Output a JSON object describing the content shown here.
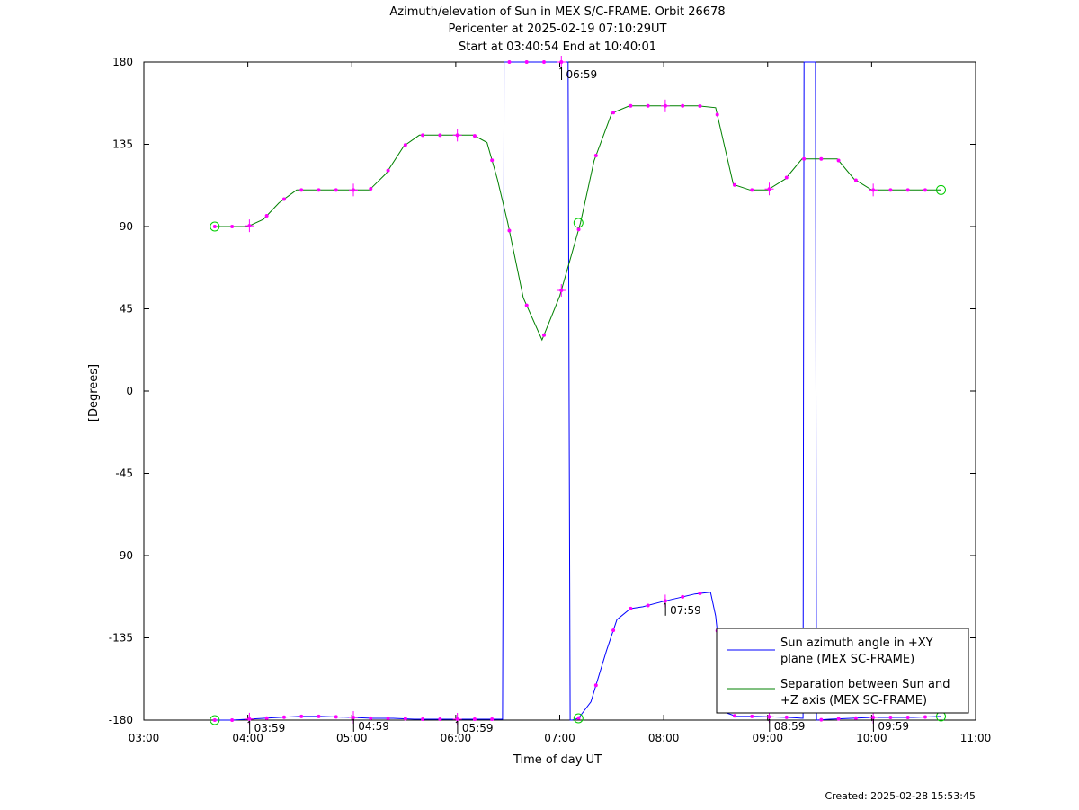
{
  "chart_data": {
    "type": "line",
    "title": [
      "Azimuth/elevation of Sun in MEX S/C-FRAME.  Orbit 26678",
      "Pericenter at 2025-02-19 07:10:29UT",
      "Start at 03:40:54 End at 10:40:01"
    ],
    "xlabel": "Time of day UT",
    "ylabel": "[Degrees]",
    "xlim": [
      3.0,
      11.0
    ],
    "ylim": [
      -180,
      180
    ],
    "x_ticks": [
      3,
      4,
      5,
      6,
      7,
      8,
      9,
      10,
      11
    ],
    "x_tick_labels": [
      "03:00",
      "04:00",
      "05:00",
      "06:00",
      "07:00",
      "08:00",
      "09:00",
      "10:00",
      "11:00"
    ],
    "y_ticks": [
      180,
      135,
      90,
      45,
      0,
      -45,
      -90,
      -135,
      -180
    ],
    "y_tick_labels": [
      "180",
      "135",
      "90",
      "45",
      "0",
      "-45",
      "-90",
      "-135",
      "-180"
    ],
    "grid": false,
    "legend_position": "bottom-right",
    "series": [
      {
        "name": "Sun azimuth angle in +XY plane (MEX SC-FRAME)",
        "color": "#0000ff",
        "x": [
          3.682,
          3.85,
          4.0,
          4.15,
          4.3,
          4.5,
          4.7,
          5.0,
          5.2,
          5.4,
          5.6,
          5.8,
          6.0,
          6.2,
          6.35,
          6.45,
          6.46,
          6.465,
          6.47,
          6.6,
          6.8,
          7.0,
          7.08,
          7.09,
          7.1,
          7.11,
          7.12,
          7.18,
          7.3,
          7.45,
          7.55,
          7.68,
          7.8,
          8.0,
          8.15,
          8.3,
          8.45,
          8.5,
          8.6,
          8.7,
          8.9,
          9.2,
          9.34,
          9.345,
          9.35,
          9.46,
          9.465,
          9.47,
          9.6,
          9.8,
          10.0,
          10.2,
          10.4,
          10.667
        ],
        "y": [
          -180,
          -180,
          -179.5,
          -179,
          -178.5,
          -178,
          -178,
          -178.5,
          -179,
          -179,
          -179.5,
          -179.5,
          -179.5,
          -179.5,
          -179.5,
          -179.5,
          0,
          180,
          180,
          180,
          180,
          180,
          180,
          0,
          -180,
          -180,
          -180,
          -179,
          -170,
          -142,
          -125,
          -119,
          -118,
          -115,
          -113,
          -111,
          -110,
          -123,
          -176,
          -178,
          -178,
          -178.5,
          -179,
          0,
          180,
          180,
          0,
          -180,
          -179.5,
          -179,
          -178.5,
          -178.5,
          -178.5,
          -178
        ]
      },
      {
        "name": "Separation between Sun and +Z axis (MEX SC-FRAME)",
        "color": "#008000",
        "x": [
          3.682,
          3.85,
          4.0,
          4.15,
          4.3,
          4.47,
          4.65,
          4.82,
          5.0,
          5.17,
          5.33,
          5.5,
          5.65,
          5.83,
          6.0,
          6.17,
          6.3,
          6.4,
          6.5,
          6.65,
          6.83,
          7.0,
          7.1,
          7.2,
          7.33,
          7.5,
          7.67,
          7.83,
          8.0,
          8.17,
          8.33,
          8.5,
          8.67,
          8.83,
          9.0,
          9.17,
          9.33,
          9.5,
          9.67,
          9.83,
          10.0,
          10.17,
          10.33,
          10.5,
          10.667
        ],
        "y": [
          90,
          90,
          90,
          94,
          103,
          110,
          110,
          110,
          110,
          110,
          119,
          134,
          140,
          140,
          140,
          140,
          136,
          116,
          92,
          51,
          28,
          52,
          72,
          92,
          126,
          152,
          156,
          156,
          156,
          156,
          156,
          155,
          113,
          110,
          110,
          116,
          127,
          127,
          127,
          116,
          110,
          110,
          110,
          110,
          110
        ]
      }
    ],
    "annotations": [
      "06:59",
      "03:59",
      "04:59",
      "05:59",
      "07:59",
      "08:59",
      "09:59"
    ],
    "footer": "Created: 2025-02-28 15:53:45"
  }
}
